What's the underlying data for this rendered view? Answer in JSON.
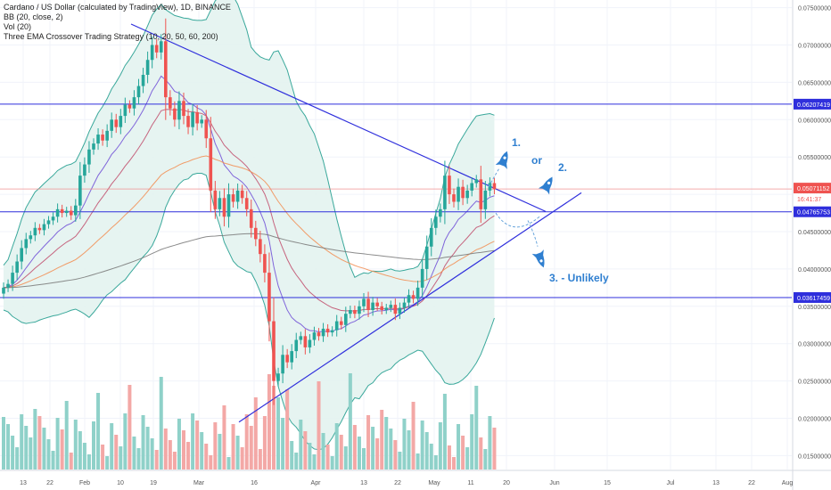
{
  "legend": {
    "line1": "Cardano / US Dollar (calculated by TradingView), 1D, BINANCE",
    "line2": "BB (20, close, 2)",
    "line3": "Vol (20)",
    "line4": "Three EMA Crossover Trading Strategy (10, 20, 50, 60, 200)"
  },
  "annotations": {
    "one": "1.",
    "or": "or",
    "two": "2.",
    "three": "3. - Unlikely"
  },
  "price_badges": {
    "level_top": "0.06207419",
    "current_price": "0.05071152",
    "countdown": "16:41:37",
    "level_mid": "0.04765753",
    "level_low": "0.03617459"
  },
  "colors": {
    "up": "#26a69a",
    "down": "#ef5350",
    "vol_up": "#8fd1c9",
    "vol_down": "#f3a8a6",
    "hline": "#2f2fdc",
    "bb_fill": "#e3f3ef",
    "bb_line": "#3aa89b",
    "annotation": "#2f7fd0",
    "ema_fast": "#6d4bd6",
    "ema_mid": "#c04a6a",
    "ema_orange": "#f28c50",
    "ema_slow": "#777777"
  },
  "chart_data": {
    "type": "candlestick",
    "symbol": "ADAUSD",
    "timeframe": "1D",
    "y_axis_ticks": [
      "0.07500000",
      "0.07000000",
      "0.06500000",
      "0.06000000",
      "0.05500000",
      "0.05000000",
      "0.04500000",
      "0.04000000",
      "0.03500000",
      "0.03000000",
      "0.02500000",
      "0.02000000",
      "0.01500000"
    ],
    "ylim": [
      0.0135,
      0.0765
    ],
    "x_axis_ticks": [
      "13",
      "22",
      "Feb",
      "10",
      "19",
      "Mar",
      "16",
      "Apr",
      "13",
      "22",
      "May",
      "11",
      "20",
      "Jun",
      "15",
      "Jul",
      "13",
      "22",
      "Aug"
    ],
    "horizontal_levels": [
      0.06207419,
      0.04765753,
      0.03617459
    ],
    "current_price": 0.05071152,
    "closes": [
      0.0375,
      0.038,
      0.0395,
      0.041,
      0.0428,
      0.044,
      0.0445,
      0.0455,
      0.0452,
      0.046,
      0.0465,
      0.047,
      0.048,
      0.0475,
      0.0478,
      0.0472,
      0.0485,
      0.0525,
      0.054,
      0.056,
      0.0568,
      0.058,
      0.0572,
      0.0585,
      0.06,
      0.059,
      0.0605,
      0.062,
      0.0615,
      0.063,
      0.0645,
      0.066,
      0.068,
      0.07,
      0.069,
      0.0705,
      0.063,
      0.0615,
      0.06,
      0.0625,
      0.0605,
      0.059,
      0.061,
      0.0595,
      0.06,
      0.0575,
      0.0505,
      0.048,
      0.0495,
      0.047,
      0.05,
      0.049,
      0.0505,
      0.0495,
      0.048,
      0.0455,
      0.044,
      0.042,
      0.0395,
      0.033,
      0.025,
      0.026,
      0.0285,
      0.0275,
      0.029,
      0.0305,
      0.031,
      0.0295,
      0.0305,
      0.0315,
      0.031,
      0.032,
      0.0315,
      0.0318,
      0.033,
      0.0325,
      0.034,
      0.0345,
      0.034,
      0.035,
      0.036,
      0.0345,
      0.0355,
      0.035,
      0.0345,
      0.0348,
      0.0352,
      0.034,
      0.0348,
      0.0355,
      0.0365,
      0.036,
      0.0375,
      0.04,
      0.043,
      0.0455,
      0.047,
      0.048,
      0.0525,
      0.05,
      0.049,
      0.051,
      0.0495,
      0.0505,
      0.0515,
      0.052,
      0.048,
      0.0505,
      0.0515,
      0.0507
    ],
    "annotations": [
      "1.",
      "or",
      "2.",
      "3. - Unlikely"
    ]
  }
}
